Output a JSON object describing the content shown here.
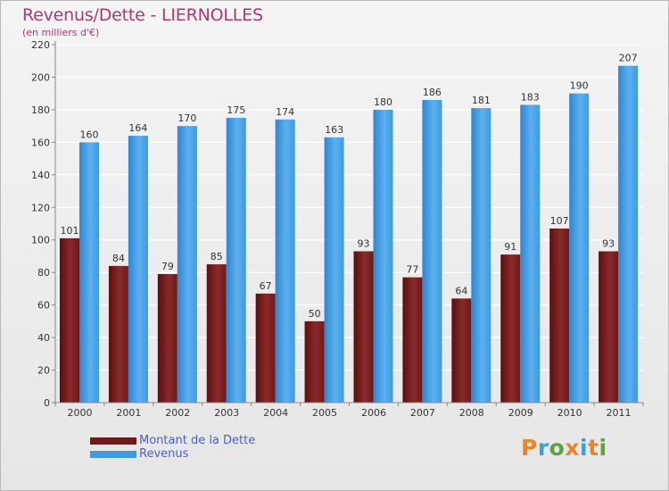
{
  "title": "Revenus/Dette - LIERNOLLES",
  "subtitle": "(en milliers d'€)",
  "logo": {
    "text": "Proxiti",
    "letter_colors": [
      "#e8862a",
      "#3aa0d8",
      "#5aa43a",
      "#e8862a",
      "#3aa0d8",
      "#e8862a",
      "#5aa43a"
    ]
  },
  "chart_data": {
    "type": "bar",
    "categories": [
      "2000",
      "2001",
      "2002",
      "2003",
      "2004",
      "2005",
      "2006",
      "2007",
      "2008",
      "2009",
      "2010",
      "2011"
    ],
    "series": [
      {
        "name": "Montant de la Dette",
        "color": "#6e1a1a",
        "values": [
          101,
          84,
          79,
          85,
          67,
          50,
          93,
          77,
          64,
          91,
          107,
          93
        ]
      },
      {
        "name": "Revenus",
        "color": "#3f9ae0",
        "values": [
          160,
          164,
          170,
          175,
          174,
          163,
          180,
          186,
          181,
          183,
          190,
          207
        ]
      }
    ],
    "ylim": [
      0,
      220
    ],
    "yticks": [
      0,
      20,
      40,
      60,
      80,
      100,
      120,
      140,
      160,
      180,
      200,
      220
    ],
    "grid": true,
    "legend": "bottom-left"
  }
}
